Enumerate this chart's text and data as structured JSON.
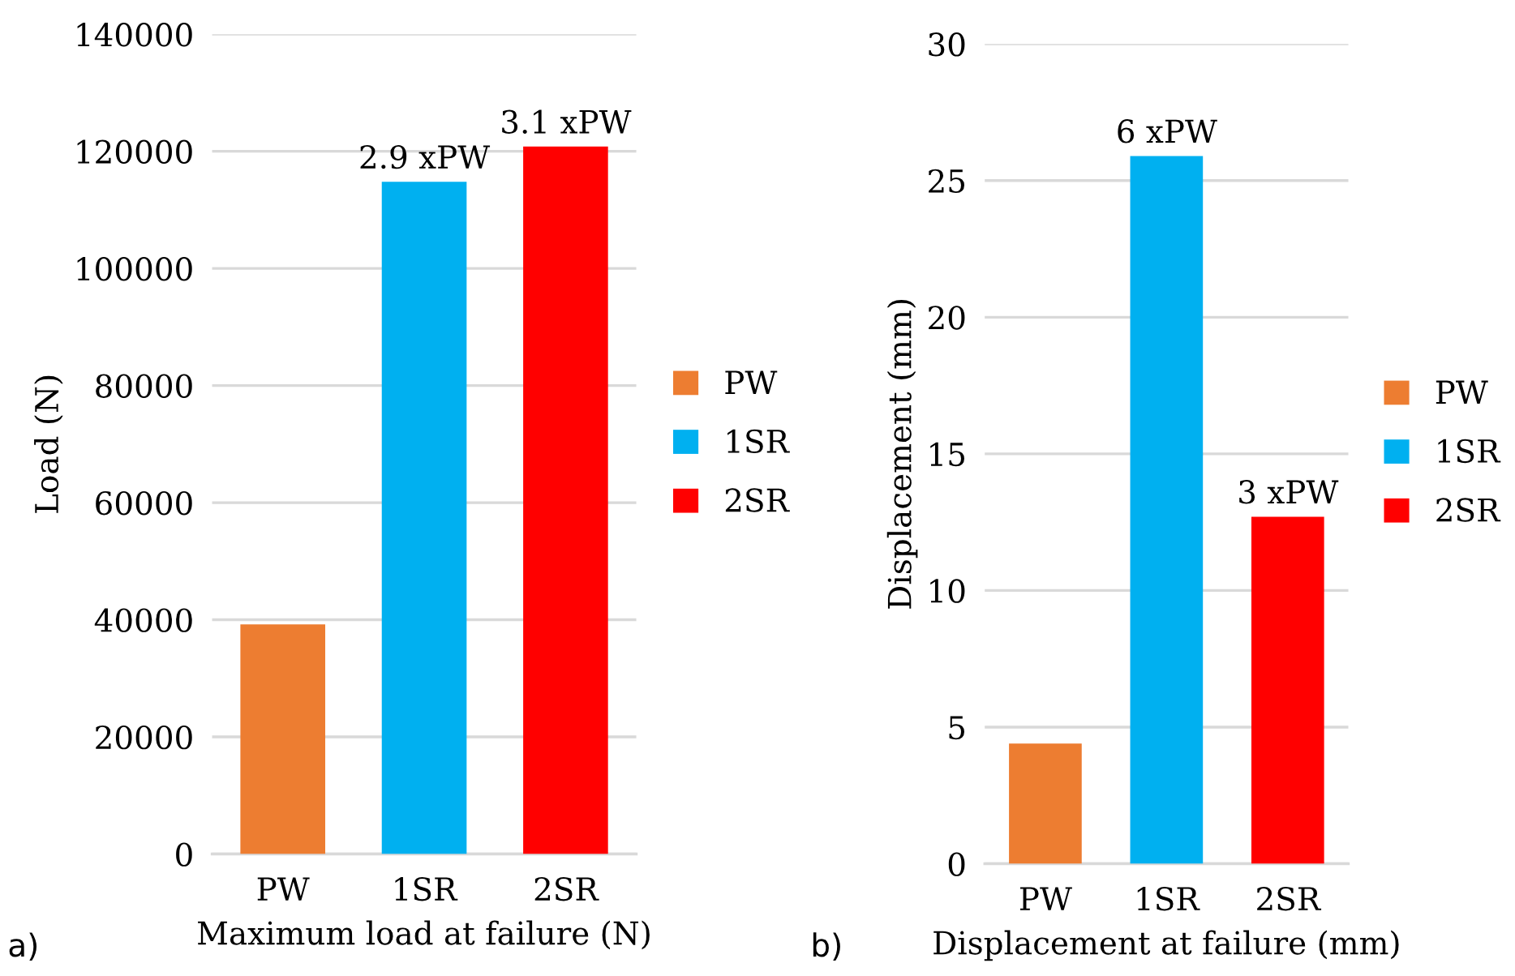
{
  "chart_data": [
    {
      "type": "bar",
      "xlabel": "Maximum load at failure (N)",
      "ylabel": "Load (N)",
      "categories": [
        "PW",
        "1SR",
        "2SR"
      ],
      "series": [
        {
          "name": "PW",
          "color": "#ed7d31",
          "values": [
            39200,
            null,
            null
          ]
        },
        {
          "name": "1SR",
          "color": "#00b0f0",
          "values": [
            null,
            114800,
            null
          ]
        },
        {
          "name": "2SR",
          "color": "#ff0000",
          "values": [
            null,
            null,
            120800
          ]
        }
      ],
      "ylim": [
        0,
        140000
      ],
      "yticks": [
        0,
        20000,
        40000,
        60000,
        80000,
        100000,
        120000,
        140000
      ],
      "grid": "y",
      "legend": "right",
      "annotations": [
        {
          "text": "2.9 xPW",
          "x": "1SR",
          "y": 114800
        },
        {
          "text": "3.1 xPW",
          "x": "2SR",
          "y": 120800
        },
        "a)"
      ]
    },
    {
      "type": "bar",
      "xlabel": "Displacement at failure (mm)",
      "ylabel": "Displacement (mm)",
      "categories": [
        "PW",
        "1SR",
        "2SR"
      ],
      "series": [
        {
          "name": "PW",
          "color": "#ed7d31",
          "values": [
            4.4,
            null,
            null
          ]
        },
        {
          "name": "1SR",
          "color": "#00b0f0",
          "values": [
            null,
            25.9,
            null
          ]
        },
        {
          "name": "2SR",
          "color": "#ff0000",
          "values": [
            null,
            null,
            12.7
          ]
        }
      ],
      "ylim": [
        0,
        30
      ],
      "yticks": [
        0,
        5,
        10,
        15,
        20,
        25,
        30
      ],
      "grid": "y",
      "legend": "right",
      "annotations": [
        {
          "text": "6 xPW",
          "x": "1SR",
          "y": 25.9
        },
        {
          "text": "3 xPW",
          "x": "2SR",
          "y": 12.7
        },
        "b)"
      ]
    }
  ]
}
